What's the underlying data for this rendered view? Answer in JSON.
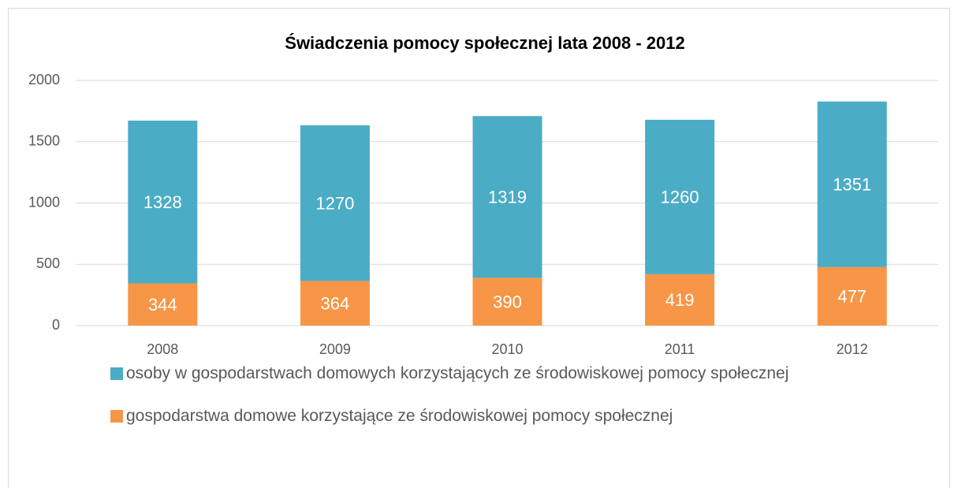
{
  "chart_data": {
    "type": "stacked_bar",
    "title": "Świadczenia pomocy społecznej lata 2008 - 2012",
    "categories": [
      "2008",
      "2009",
      "2010",
      "2011",
      "2012"
    ],
    "series": [
      {
        "name": "osoby w gospodarstwach domowych korzystających ze środowiskowej pomocy społecznej",
        "color": "#4bacc6",
        "values": [
          1328,
          1270,
          1319,
          1260,
          1351
        ]
      },
      {
        "name": "gospodarstwa domowe korzystające ze środowiskowej pomocy społecznej",
        "color": "#f79646",
        "values": [
          344,
          364,
          390,
          419,
          477
        ]
      }
    ],
    "ylim": [
      0,
      2000
    ],
    "yticks": [
      0,
      500,
      1000,
      1500,
      2000
    ],
    "grid": true,
    "legend": "bottom"
  }
}
